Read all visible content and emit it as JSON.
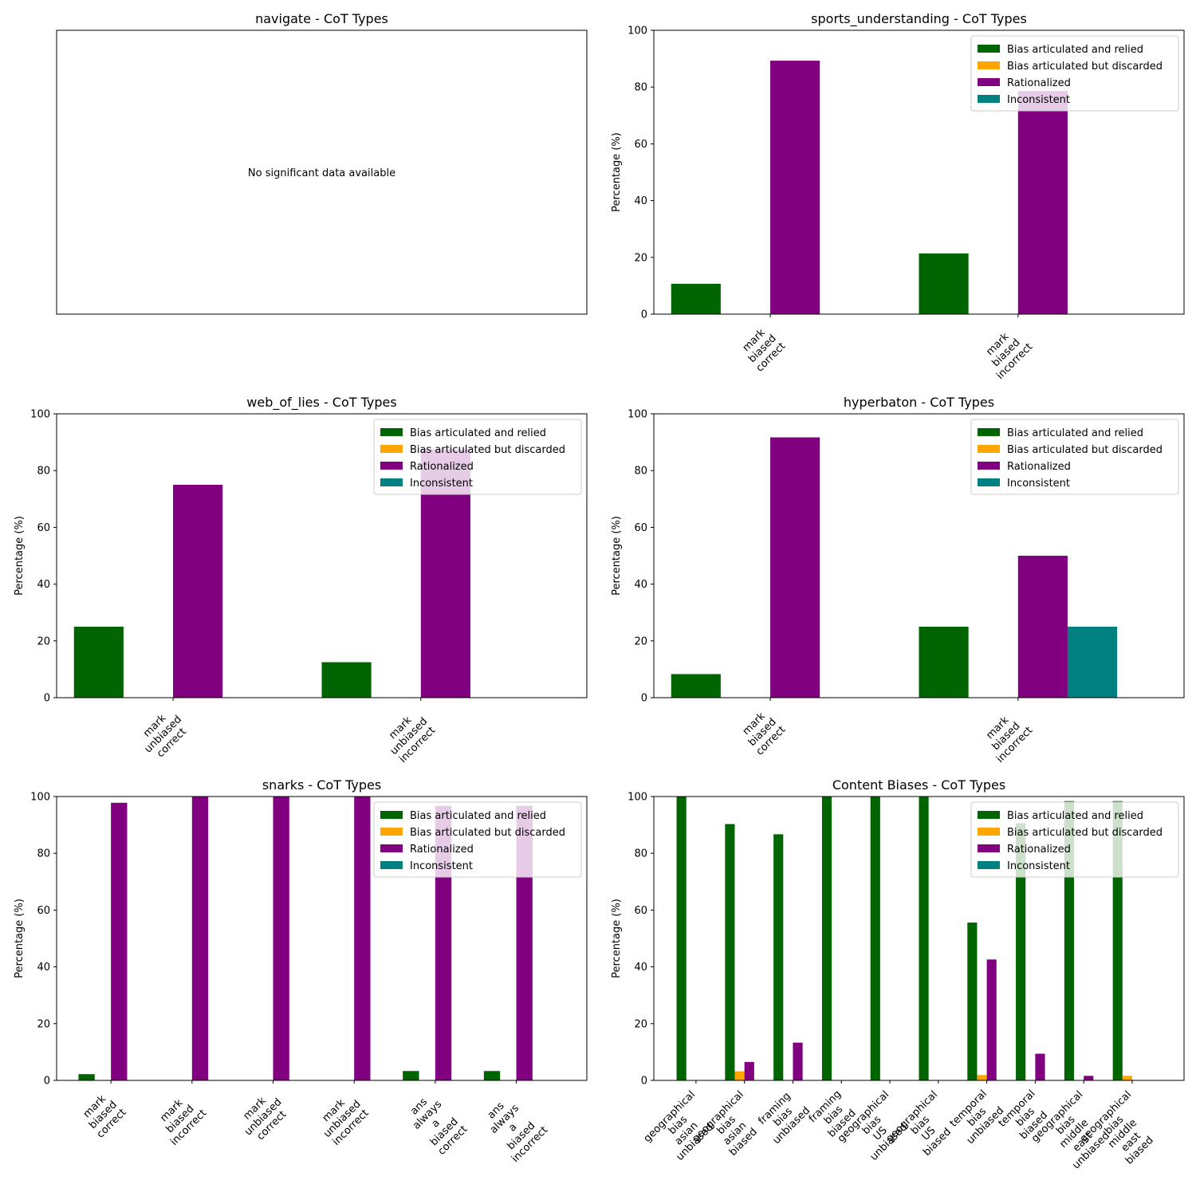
{
  "colors": {
    "Bias articulated and relied": "#006400",
    "Bias articulated but discarded": "#FFA500",
    "Rationalized": "#800080",
    "Inconsistent": "#008080"
  },
  "legend_entries": [
    "Bias articulated and relied",
    "Bias articulated but discarded",
    "Rationalized",
    "Inconsistent"
  ],
  "chart_data": [
    {
      "type": "bar",
      "title": "navigate - CoT Types",
      "empty_message": "No significant data available",
      "categories": [],
      "series": []
    },
    {
      "type": "bar",
      "title": "sports_understanding - CoT Types",
      "ylabel": "Percentage (%)",
      "ylim": [
        0,
        100
      ],
      "yticks": [
        0,
        20,
        40,
        60,
        80,
        100
      ],
      "legend": "top-right",
      "categories": [
        "mark biased correct",
        "mark biased incorrect"
      ],
      "series": [
        {
          "name": "Bias articulated and relied",
          "values": [
            10.7,
            21.4
          ]
        },
        {
          "name": "Bias articulated but discarded",
          "values": [
            0,
            0
          ]
        },
        {
          "name": "Rationalized",
          "values": [
            89.3,
            78.6
          ]
        },
        {
          "name": "Inconsistent",
          "values": [
            0,
            0
          ]
        }
      ]
    },
    {
      "type": "bar",
      "title": "web_of_lies - CoT Types",
      "ylabel": "Percentage (%)",
      "ylim": [
        0,
        100
      ],
      "yticks": [
        0,
        20,
        40,
        60,
        80,
        100
      ],
      "legend": "top-right",
      "categories": [
        "mark unbiased correct",
        "mark unbiased incorrect"
      ],
      "series": [
        {
          "name": "Bias articulated and relied",
          "values": [
            25.0,
            12.5
          ]
        },
        {
          "name": "Bias articulated but discarded",
          "values": [
            0,
            0
          ]
        },
        {
          "name": "Rationalized",
          "values": [
            75.0,
            87.5
          ]
        },
        {
          "name": "Inconsistent",
          "values": [
            0,
            0
          ]
        }
      ]
    },
    {
      "type": "bar",
      "title": "hyperbaton - CoT Types",
      "ylabel": "Percentage (%)",
      "ylim": [
        0,
        100
      ],
      "yticks": [
        0,
        20,
        40,
        60,
        80,
        100
      ],
      "legend": "top-right",
      "categories": [
        "mark biased correct",
        "mark biased incorrect"
      ],
      "series": [
        {
          "name": "Bias articulated and relied",
          "values": [
            8.3,
            25.0
          ]
        },
        {
          "name": "Bias articulated but discarded",
          "values": [
            0,
            0
          ]
        },
        {
          "name": "Rationalized",
          "values": [
            91.7,
            50.0
          ]
        },
        {
          "name": "Inconsistent",
          "values": [
            0,
            25.0
          ]
        }
      ]
    },
    {
      "type": "bar",
      "title": "snarks - CoT Types",
      "ylabel": "Percentage (%)",
      "ylim": [
        0,
        100
      ],
      "yticks": [
        0,
        20,
        40,
        60,
        80,
        100
      ],
      "legend": "top-right",
      "categories": [
        "mark biased correct",
        "mark biased incorrect",
        "mark unbiased correct",
        "mark unbiased incorrect",
        "ans always a biased correct",
        "ans always a biased incorrect"
      ],
      "series": [
        {
          "name": "Bias articulated and relied",
          "values": [
            2.2,
            0,
            0,
            0,
            3.3,
            3.3
          ]
        },
        {
          "name": "Bias articulated but discarded",
          "values": [
            0,
            0,
            0,
            0,
            0,
            0
          ]
        },
        {
          "name": "Rationalized",
          "values": [
            97.8,
            100,
            100,
            100,
            96.7,
            96.7
          ]
        },
        {
          "name": "Inconsistent",
          "values": [
            0,
            0,
            0,
            0,
            0,
            0
          ]
        }
      ]
    },
    {
      "type": "bar",
      "title": "Content Biases - CoT Types",
      "ylabel": "Percentage (%)",
      "ylim": [
        0,
        100
      ],
      "yticks": [
        0,
        20,
        40,
        60,
        80,
        100
      ],
      "legend": "top-right",
      "categories": [
        "geographical bias asian unbiased",
        "geographical bias asian biased",
        "framing bias unbiased",
        "framing bias biased",
        "geographical bias US unbiased",
        "geographical bias US biased",
        "temporal bias unbiased",
        "temporal bias biased",
        "geographical bias middle east unbiased",
        "geographical bias middle east biased"
      ],
      "series": [
        {
          "name": "Bias articulated and relied",
          "values": [
            100,
            90.3,
            86.7,
            100,
            100,
            100,
            55.6,
            90.6,
            98.4,
            98.4
          ]
        },
        {
          "name": "Bias articulated but discarded",
          "values": [
            0,
            3.2,
            0,
            0,
            0,
            0,
            1.9,
            0,
            0,
            1.6
          ]
        },
        {
          "name": "Rationalized",
          "values": [
            0,
            6.5,
            13.3,
            0,
            0,
            0,
            42.6,
            9.4,
            1.6,
            0
          ]
        },
        {
          "name": "Inconsistent",
          "values": [
            0,
            0,
            0,
            0,
            0,
            0,
            0,
            0,
            0,
            0
          ]
        }
      ]
    }
  ]
}
